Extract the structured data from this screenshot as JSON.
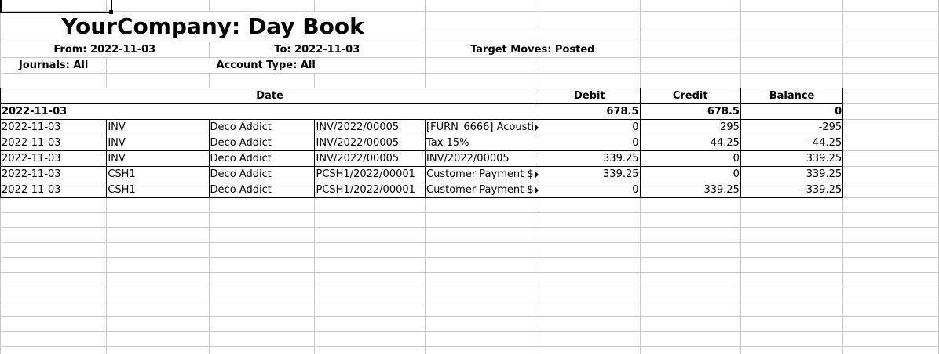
{
  "report": {
    "title": "YourCompany: Day Book",
    "from": "From: 2022-11-03",
    "to": "To: 2022-11-03",
    "target_moves": "Target Moves: Posted",
    "journals": "Journals: All",
    "account_type": "Account Type: All"
  },
  "table": {
    "headers": {
      "date": "Date",
      "debit": "Debit",
      "credit": "Credit",
      "balance": "Balance"
    },
    "group": {
      "date": "2022-11-03",
      "debit": "678.5",
      "credit": "678.5",
      "balance": "0"
    },
    "rows": [
      {
        "date": "2022-11-03",
        "journal": "INV",
        "partner": "Deco Addict",
        "move": "INV/2022/00005",
        "label": "[FURN_6666] Acousti",
        "debit": "0",
        "credit": "295",
        "balance": "-295"
      },
      {
        "date": "2022-11-03",
        "journal": "INV",
        "partner": "Deco Addict",
        "move": "INV/2022/00005",
        "label": "Tax 15%",
        "debit": "0",
        "credit": "44.25",
        "balance": "-44.25"
      },
      {
        "date": "2022-11-03",
        "journal": "INV",
        "partner": "Deco Addict",
        "move": "INV/2022/00005",
        "label": "INV/2022/00005",
        "debit": "339.25",
        "credit": "0",
        "balance": "339.25"
      },
      {
        "date": "2022-11-03",
        "journal": "CSH1",
        "partner": "Deco Addict",
        "move": "PCSH1/2022/00001",
        "label": "Customer Payment $",
        "debit": "339.25",
        "credit": "0",
        "balance": "339.25"
      },
      {
        "date": "2022-11-03",
        "journal": "CSH1",
        "partner": "Deco Addict",
        "move": "PCSH1/2022/00001",
        "label": "Customer Payment $",
        "debit": "0",
        "credit": "339.25",
        "balance": "-339.25"
      }
    ]
  }
}
